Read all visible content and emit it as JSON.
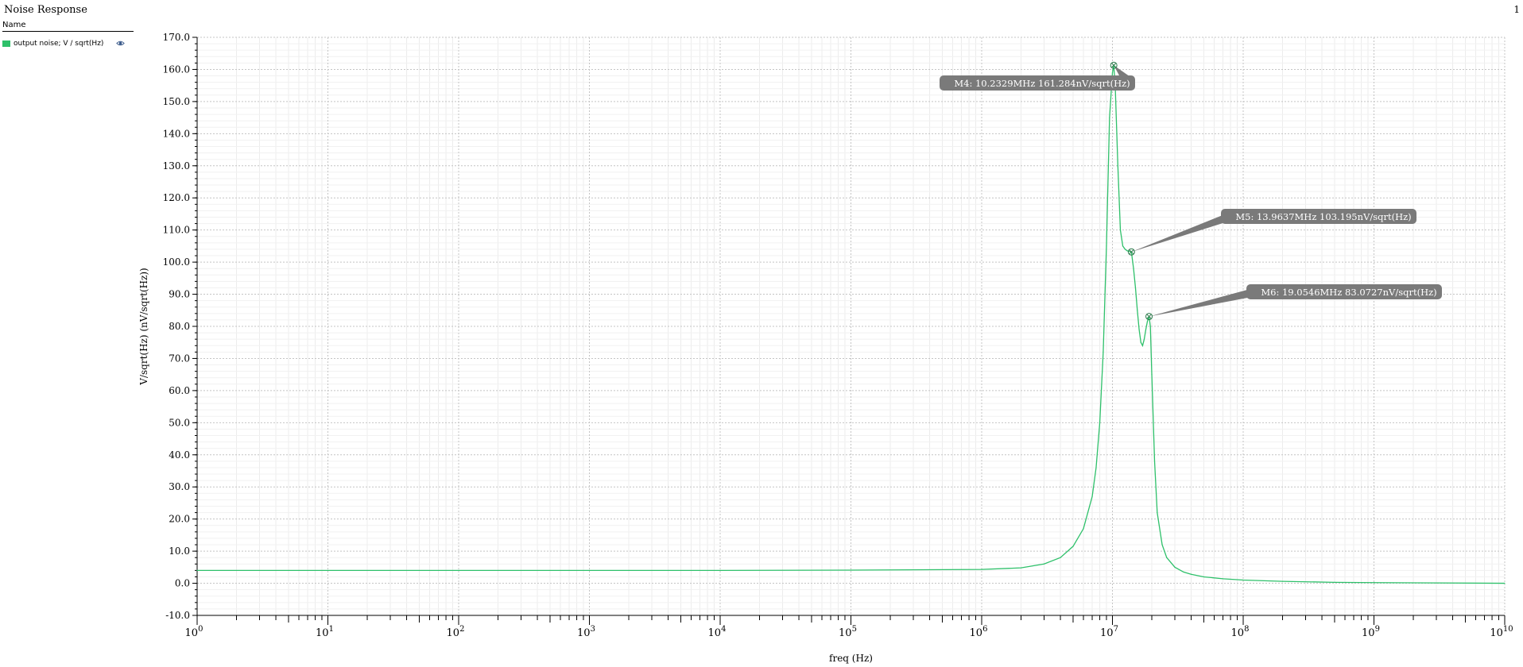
{
  "window": {
    "title": "Noise Response",
    "page_number": "1"
  },
  "legend": {
    "header": "Name",
    "items": [
      {
        "label": "output noise; V / sqrt(Hz)",
        "color": "#2ec06a",
        "visibility_icon": "eye-icon"
      }
    ]
  },
  "chart_data": {
    "type": "line",
    "xlabel": "freq (Hz)",
    "ylabel": "V/sqrt(Hz) (nV/sqrt(Hz))",
    "x_scale": "log",
    "xlim": [
      1,
      10000000000
    ],
    "ylim": [
      -10,
      170
    ],
    "grid": true,
    "y_ticks": [
      "-10.0",
      "0.0",
      "10.0",
      "20.0",
      "30.0",
      "40.0",
      "50.0",
      "60.0",
      "70.0",
      "80.0",
      "90.0",
      "100.0",
      "110.0",
      "120.0",
      "130.0",
      "140.0",
      "150.0",
      "160.0",
      "170.0"
    ],
    "x_tick_bases": [
      "10",
      "10",
      "10",
      "10",
      "10",
      "10",
      "10",
      "10",
      "10",
      "10",
      "10"
    ],
    "x_tick_exponents": [
      "0",
      "1",
      "2",
      "3",
      "4",
      "5",
      "6",
      "7",
      "8",
      "9",
      "10"
    ],
    "series": [
      {
        "color": "#2ec06a",
        "x": [
          1,
          10,
          100,
          1000,
          10000,
          100000,
          1000000,
          2000000,
          3000000,
          4000000,
          5000000,
          6000000,
          7000000,
          7500000,
          8000000,
          8500000,
          9000000,
          9500000,
          10000000,
          10232900,
          10500000,
          11000000,
          11500000,
          12000000,
          12500000,
          13000000,
          13963700,
          14500000,
          15000000,
          15500000,
          16000000,
          16500000,
          17000000,
          17500000,
          18000000,
          18500000,
          19054600,
          19500000,
          20000000,
          21000000,
          22000000,
          24000000,
          26000000,
          30000000,
          35000000,
          40000000,
          50000000,
          70000000,
          100000000,
          200000000,
          500000000,
          1000000000,
          3000000000,
          10000000000
        ],
        "y": [
          4.0,
          4.0,
          4.0,
          4.0,
          4.0,
          4.1,
          4.3,
          4.8,
          6.0,
          8.0,
          11.5,
          17.0,
          27.0,
          36.0,
          50.0,
          72.0,
          105.0,
          145.0,
          159.0,
          161.284,
          155.0,
          130.0,
          110.0,
          105.0,
          104.0,
          103.5,
          103.195,
          98.0,
          92.0,
          85.0,
          79.0,
          75.0,
          74.0,
          76.0,
          79.0,
          81.5,
          83.0727,
          80.0,
          65.0,
          38.0,
          22.0,
          12.0,
          8.0,
          5.0,
          3.5,
          2.8,
          2.0,
          1.4,
          1.0,
          0.6,
          0.3,
          0.2,
          0.1,
          0.0
        ]
      }
    ],
    "markers": [
      {
        "label": "M4: 10.2329MHz 161.284nV/sqrt(Hz)",
        "x": 10232900,
        "y": 161.284
      },
      {
        "label": "M5: 13.9637MHz 103.195nV/sqrt(Hz)",
        "x": 13963700,
        "y": 103.195
      },
      {
        "label": "M6: 19.0546MHz 83.0727nV/sqrt(Hz)",
        "x": 19054600,
        "y": 83.0727
      }
    ]
  }
}
